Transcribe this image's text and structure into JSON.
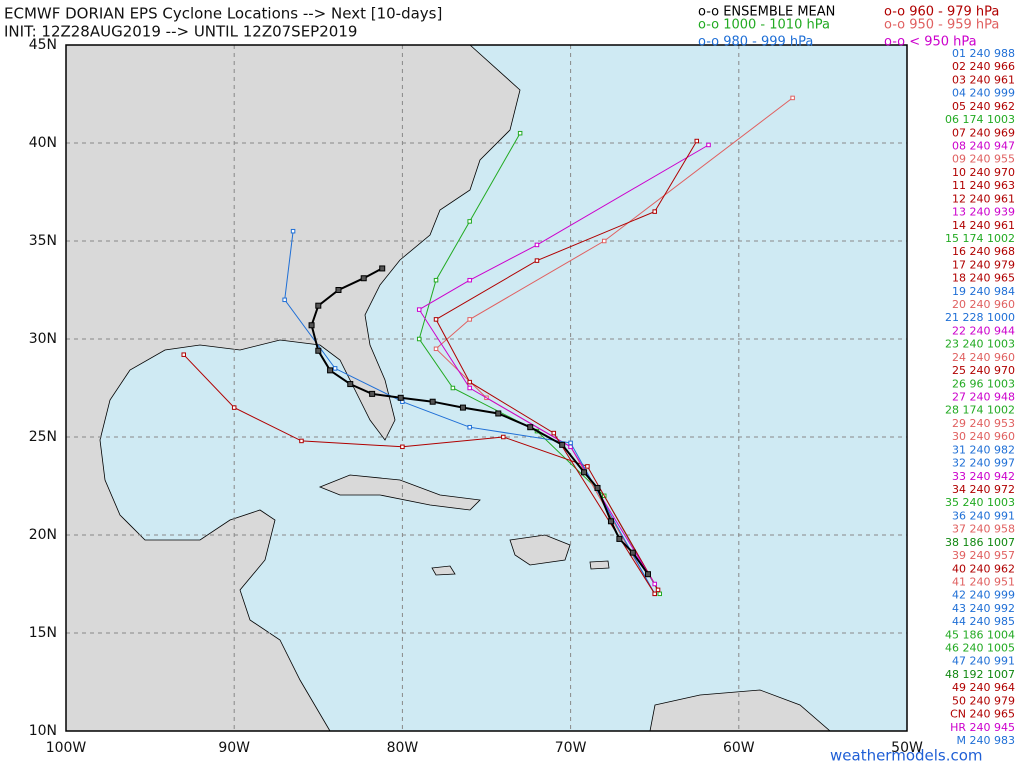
{
  "map": {
    "title": "ECMWF DORIAN EPS Cyclone Locations --> Next [10-days]",
    "init": "INIT: 12Z28AUG2019 --> UNTIL 12Z07SEP2019",
    "credit": "weathermodels.com",
    "xlim": [
      -100,
      -50
    ],
    "ylim": [
      10,
      45
    ],
    "xticks": [
      {
        "value": -100,
        "label": "100W"
      },
      {
        "value": -90,
        "label": "90W"
      },
      {
        "value": -80,
        "label": "80W"
      },
      {
        "value": -70,
        "label": "70W"
      },
      {
        "value": -60,
        "label": "60W"
      },
      {
        "value": -50,
        "label": "50W"
      }
    ],
    "yticks": [
      {
        "value": 10,
        "label": "10N"
      },
      {
        "value": 15,
        "label": "15N"
      },
      {
        "value": 20,
        "label": "20N"
      },
      {
        "value": 25,
        "label": "25N"
      },
      {
        "value": 30,
        "label": "30N"
      },
      {
        "value": 35,
        "label": "35N"
      },
      {
        "value": 40,
        "label": "40N"
      },
      {
        "value": 45,
        "label": "45N"
      }
    ],
    "legend": [
      {
        "label": "o-o ENSEMBLE MEAN",
        "color": "#000000"
      },
      {
        "label": "o-o 960 - 979 hPa",
        "color": "#b00000"
      },
      {
        "label": "o-o 1000 - 1010 hPa",
        "color": "#22aa22"
      },
      {
        "label": "o-o 950 - 959 hPa",
        "color": "#e06060"
      },
      {
        "label": "o-o 980 - 999 hPa",
        "color": "#1f6fd6"
      },
      {
        "label": "o-o < 950 hPa",
        "color": "#cc00cc"
      }
    ],
    "members": [
      {
        "label": "01 240 988",
        "color": "#1f6fd6"
      },
      {
        "label": "02 240 966",
        "color": "#b00000"
      },
      {
        "label": "03 240 961",
        "color": "#b00000"
      },
      {
        "label": "04 240 999",
        "color": "#1f6fd6"
      },
      {
        "label": "05 240 962",
        "color": "#b00000"
      },
      {
        "label": "06 174 1003",
        "color": "#22aa22"
      },
      {
        "label": "07 240 969",
        "color": "#b00000"
      },
      {
        "label": "08 240 947",
        "color": "#cc00cc"
      },
      {
        "label": "09 240 955",
        "color": "#e06060"
      },
      {
        "label": "10 240 970",
        "color": "#b00000"
      },
      {
        "label": "11 240 963",
        "color": "#b00000"
      },
      {
        "label": "12 240 961",
        "color": "#b00000"
      },
      {
        "label": "13 240 939",
        "color": "#cc00cc"
      },
      {
        "label": "14 240 961",
        "color": "#b00000"
      },
      {
        "label": "15 174 1002",
        "color": "#22aa22"
      },
      {
        "label": "16 240 968",
        "color": "#b00000"
      },
      {
        "label": "17 240 979",
        "color": "#b00000"
      },
      {
        "label": "18 240 965",
        "color": "#b00000"
      },
      {
        "label": "19 240 984",
        "color": "#1f6fd6"
      },
      {
        "label": "20 240 960",
        "color": "#e06060"
      },
      {
        "label": "21 228 1000",
        "color": "#1f6fd6"
      },
      {
        "label": "22 240 944",
        "color": "#cc00cc"
      },
      {
        "label": "23 240 1003",
        "color": "#22aa22"
      },
      {
        "label": "24 240 960",
        "color": "#e06060"
      },
      {
        "label": "25 240 970",
        "color": "#b00000"
      },
      {
        "label": "26 96 1003",
        "color": "#22aa22"
      },
      {
        "label": "27 240 948",
        "color": "#cc00cc"
      },
      {
        "label": "28 174 1002",
        "color": "#22aa22"
      },
      {
        "label": "29 240 953",
        "color": "#e06060"
      },
      {
        "label": "30 240 960",
        "color": "#e06060"
      },
      {
        "label": "31 240 982",
        "color": "#1f6fd6"
      },
      {
        "label": "32 240 997",
        "color": "#1f6fd6"
      },
      {
        "label": "33 240 942",
        "color": "#cc00cc"
      },
      {
        "label": "34 240 972",
        "color": "#b00000"
      },
      {
        "label": "35 240 1003",
        "color": "#22aa22"
      },
      {
        "label": "36 240 991",
        "color": "#1f6fd6"
      },
      {
        "label": "37 240 958",
        "color": "#e06060"
      },
      {
        "label": "38 186 1007",
        "color": "#118811"
      },
      {
        "label": "39 240 957",
        "color": "#e06060"
      },
      {
        "label": "40 240 962",
        "color": "#b00000"
      },
      {
        "label": "41 240 951",
        "color": "#e06060"
      },
      {
        "label": "42 240 999",
        "color": "#1f6fd6"
      },
      {
        "label": "43 240 992",
        "color": "#1f6fd6"
      },
      {
        "label": "44 240 985",
        "color": "#1f6fd6"
      },
      {
        "label": "45 186 1004",
        "color": "#22aa22"
      },
      {
        "label": "46 240 1005",
        "color": "#22aa22"
      },
      {
        "label": "47 240 991",
        "color": "#1f6fd6"
      },
      {
        "label": "48 192 1007",
        "color": "#118811"
      },
      {
        "label": "49 240 964",
        "color": "#b00000"
      },
      {
        "label": "50 240 979",
        "color": "#b00000"
      },
      {
        "label": "CN 240 965",
        "color": "#b00000"
      },
      {
        "label": "HR 240 945",
        "color": "#cc00cc"
      },
      {
        "label": "M 240 983",
        "color": "#1f6fd6"
      }
    ],
    "tracks": [
      {
        "color": "#22aa22",
        "lon": [
          -64.7,
          -68,
          -72,
          -77,
          -79,
          -78,
          -76,
          -73
        ],
        "lat": [
          17,
          22,
          25.3,
          27.5,
          30,
          33,
          36,
          40.5
        ]
      },
      {
        "color": "#b00000",
        "lon": [
          -64.8,
          -69,
          -74,
          -80,
          -86,
          -90,
          -93
        ],
        "lat": [
          17.2,
          23.5,
          25,
          24.5,
          24.8,
          26.5,
          29.2
        ]
      },
      {
        "color": "#e06060",
        "lon": [
          -65,
          -70,
          -75,
          -78,
          -76,
          -68,
          -56.8
        ],
        "lat": [
          17,
          24.5,
          27,
          29.5,
          31,
          35,
          42.3
        ]
      },
      {
        "color": "#cc00cc",
        "lon": [
          -65,
          -70,
          -76,
          -79,
          -76,
          -72,
          -61.8
        ],
        "lat": [
          17.5,
          24.5,
          27.5,
          31.5,
          33,
          34.8,
          39.9
        ]
      },
      {
        "color": "#1f6fd6",
        "lon": [
          -65,
          -70,
          -76,
          -80,
          -84,
          -87,
          -86.5
        ],
        "lat": [
          17,
          24.7,
          25.5,
          26.8,
          28.5,
          32,
          35.5
        ]
      },
      {
        "color": "#b00000",
        "lon": [
          -65,
          -71,
          -76,
          -78,
          -72,
          -65,
          -62.5
        ],
        "lat": [
          17,
          25.2,
          27.8,
          31,
          34,
          36.5,
          40.1
        ]
      },
      {
        "color": "#000000",
        "lon": [
          -65.4,
          -66.3,
          -67.1,
          -67.6,
          -68.4,
          -69.2,
          -70.5,
          -72.4,
          -74.3,
          -76.4,
          -78.2,
          -80.1,
          -81.8,
          -83.1,
          -84.3,
          -85.0,
          -85.4,
          -85.0,
          -83.8,
          -82.3,
          -81.2
        ],
        "lat": [
          18.0,
          19.1,
          19.8,
          20.7,
          22.4,
          23.2,
          24.6,
          25.5,
          26.2,
          26.5,
          26.8,
          27.0,
          27.2,
          27.7,
          28.4,
          29.4,
          30.7,
          31.7,
          32.5,
          33.1,
          33.6
        ]
      }
    ]
  }
}
